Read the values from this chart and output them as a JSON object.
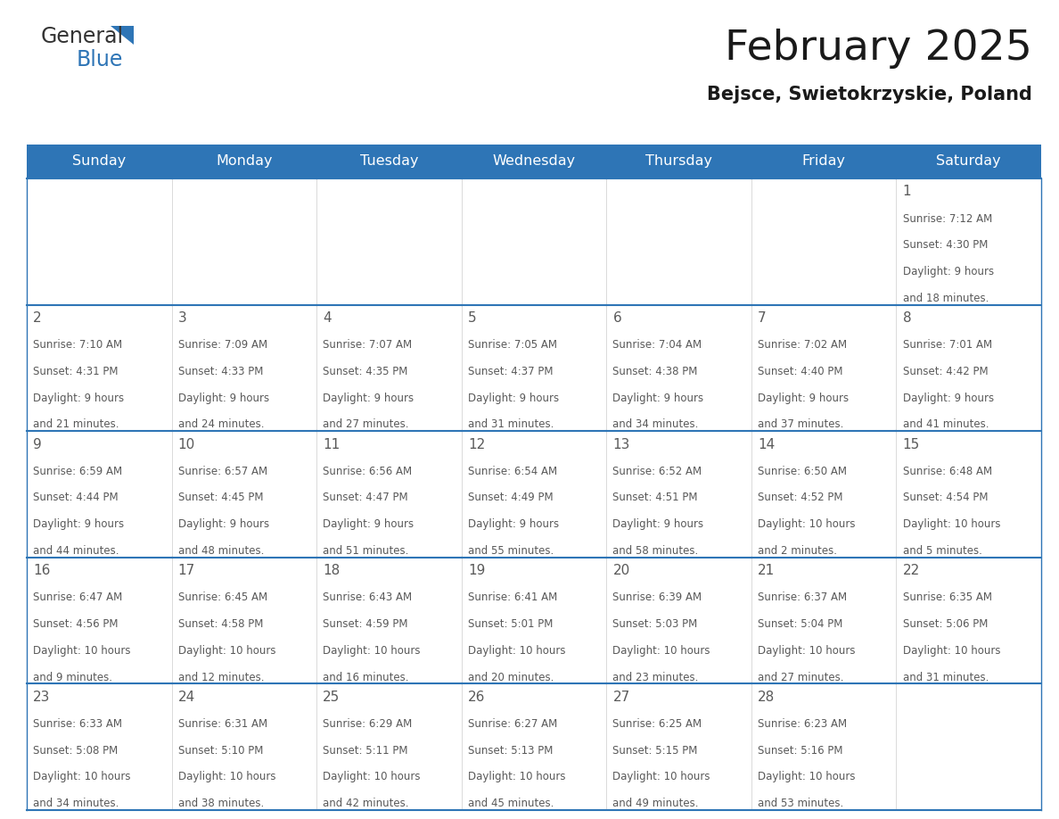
{
  "title": "February 2025",
  "subtitle": "Bejsce, Swietokrzyskie, Poland",
  "days_of_week": [
    "Sunday",
    "Monday",
    "Tuesday",
    "Wednesday",
    "Thursday",
    "Friday",
    "Saturday"
  ],
  "header_bg": "#2E75B6",
  "header_text": "#FFFFFF",
  "cell_bg": "#FFFFFF",
  "line_color": "#2E75B6",
  "day_num_color": "#595959",
  "text_color": "#595959",
  "calendar_data": [
    [
      null,
      null,
      null,
      null,
      null,
      null,
      {
        "day": "1",
        "sunrise": "7:12 AM",
        "sunset": "4:30 PM",
        "daylight": "9 hours",
        "daylight2": "and 18 minutes."
      }
    ],
    [
      {
        "day": "2",
        "sunrise": "7:10 AM",
        "sunset": "4:31 PM",
        "daylight": "9 hours",
        "daylight2": "and 21 minutes."
      },
      {
        "day": "3",
        "sunrise": "7:09 AM",
        "sunset": "4:33 PM",
        "daylight": "9 hours",
        "daylight2": "and 24 minutes."
      },
      {
        "day": "4",
        "sunrise": "7:07 AM",
        "sunset": "4:35 PM",
        "daylight": "9 hours",
        "daylight2": "and 27 minutes."
      },
      {
        "day": "5",
        "sunrise": "7:05 AM",
        "sunset": "4:37 PM",
        "daylight": "9 hours",
        "daylight2": "and 31 minutes."
      },
      {
        "day": "6",
        "sunrise": "7:04 AM",
        "sunset": "4:38 PM",
        "daylight": "9 hours",
        "daylight2": "and 34 minutes."
      },
      {
        "day": "7",
        "sunrise": "7:02 AM",
        "sunset": "4:40 PM",
        "daylight": "9 hours",
        "daylight2": "and 37 minutes."
      },
      {
        "day": "8",
        "sunrise": "7:01 AM",
        "sunset": "4:42 PM",
        "daylight": "9 hours",
        "daylight2": "and 41 minutes."
      }
    ],
    [
      {
        "day": "9",
        "sunrise": "6:59 AM",
        "sunset": "4:44 PM",
        "daylight": "9 hours",
        "daylight2": "and 44 minutes."
      },
      {
        "day": "10",
        "sunrise": "6:57 AM",
        "sunset": "4:45 PM",
        "daylight": "9 hours",
        "daylight2": "and 48 minutes."
      },
      {
        "day": "11",
        "sunrise": "6:56 AM",
        "sunset": "4:47 PM",
        "daylight": "9 hours",
        "daylight2": "and 51 minutes."
      },
      {
        "day": "12",
        "sunrise": "6:54 AM",
        "sunset": "4:49 PM",
        "daylight": "9 hours",
        "daylight2": "and 55 minutes."
      },
      {
        "day": "13",
        "sunrise": "6:52 AM",
        "sunset": "4:51 PM",
        "daylight": "9 hours",
        "daylight2": "and 58 minutes."
      },
      {
        "day": "14",
        "sunrise": "6:50 AM",
        "sunset": "4:52 PM",
        "daylight": "10 hours",
        "daylight2": "and 2 minutes."
      },
      {
        "day": "15",
        "sunrise": "6:48 AM",
        "sunset": "4:54 PM",
        "daylight": "10 hours",
        "daylight2": "and 5 minutes."
      }
    ],
    [
      {
        "day": "16",
        "sunrise": "6:47 AM",
        "sunset": "4:56 PM",
        "daylight": "10 hours",
        "daylight2": "and 9 minutes."
      },
      {
        "day": "17",
        "sunrise": "6:45 AM",
        "sunset": "4:58 PM",
        "daylight": "10 hours",
        "daylight2": "and 12 minutes."
      },
      {
        "day": "18",
        "sunrise": "6:43 AM",
        "sunset": "4:59 PM",
        "daylight": "10 hours",
        "daylight2": "and 16 minutes."
      },
      {
        "day": "19",
        "sunrise": "6:41 AM",
        "sunset": "5:01 PM",
        "daylight": "10 hours",
        "daylight2": "and 20 minutes."
      },
      {
        "day": "20",
        "sunrise": "6:39 AM",
        "sunset": "5:03 PM",
        "daylight": "10 hours",
        "daylight2": "and 23 minutes."
      },
      {
        "day": "21",
        "sunrise": "6:37 AM",
        "sunset": "5:04 PM",
        "daylight": "10 hours",
        "daylight2": "and 27 minutes."
      },
      {
        "day": "22",
        "sunrise": "6:35 AM",
        "sunset": "5:06 PM",
        "daylight": "10 hours",
        "daylight2": "and 31 minutes."
      }
    ],
    [
      {
        "day": "23",
        "sunrise": "6:33 AM",
        "sunset": "5:08 PM",
        "daylight": "10 hours",
        "daylight2": "and 34 minutes."
      },
      {
        "day": "24",
        "sunrise": "6:31 AM",
        "sunset": "5:10 PM",
        "daylight": "10 hours",
        "daylight2": "and 38 minutes."
      },
      {
        "day": "25",
        "sunrise": "6:29 AM",
        "sunset": "5:11 PM",
        "daylight": "10 hours",
        "daylight2": "and 42 minutes."
      },
      {
        "day": "26",
        "sunrise": "6:27 AM",
        "sunset": "5:13 PM",
        "daylight": "10 hours",
        "daylight2": "and 45 minutes."
      },
      {
        "day": "27",
        "sunrise": "6:25 AM",
        "sunset": "5:15 PM",
        "daylight": "10 hours",
        "daylight2": "and 49 minutes."
      },
      {
        "day": "28",
        "sunrise": "6:23 AM",
        "sunset": "5:16 PM",
        "daylight": "10 hours",
        "daylight2": "and 53 minutes."
      },
      null
    ]
  ]
}
